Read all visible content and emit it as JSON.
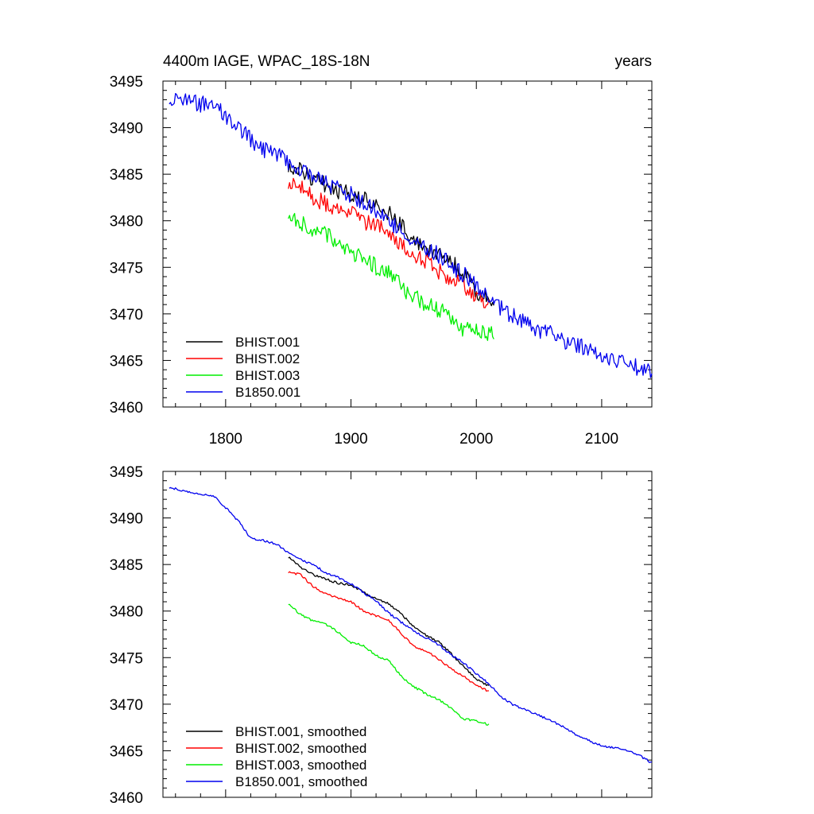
{
  "chart_data": [
    {
      "type": "line",
      "title": "4400m IAGE, WPAC_18S-18N",
      "title_right": "years",
      "xlim": [
        1750,
        2140
      ],
      "ylim": [
        3460,
        3495
      ],
      "xticks": [
        1800,
        1900,
        2000,
        2100
      ],
      "yticks": [
        3460,
        3465,
        3470,
        3475,
        3480,
        3485,
        3490,
        3495
      ],
      "show_xtick_labels": true,
      "legend_position": "bottom-left",
      "series": [
        {
          "name": "BHIST.001",
          "color": "#000000",
          "noise": 0.9,
          "x": [
            1850,
            1860,
            1870,
            1880,
            1890,
            1900,
            1910,
            1920,
            1930,
            1940,
            1950,
            1960,
            1970,
            1980,
            1990,
            2000,
            2005,
            2014
          ],
          "y": [
            3486.0,
            3485.4,
            3484.4,
            3483.9,
            3483.1,
            3482.9,
            3482.3,
            3481.4,
            3480.8,
            3479.6,
            3478.0,
            3477.1,
            3476.6,
            3475.6,
            3474.2,
            3472.3,
            3472.0,
            3471.3
          ]
        },
        {
          "name": "BHIST.002",
          "color": "#ff0000",
          "noise": 0.9,
          "x": [
            1850,
            1860,
            1870,
            1880,
            1890,
            1900,
            1910,
            1920,
            1930,
            1940,
            1950,
            1960,
            1970,
            1980,
            1990,
            2000,
            2010
          ],
          "y": [
            3484.2,
            3483.8,
            3482.5,
            3481.8,
            3481.3,
            3480.9,
            3479.9,
            3479.4,
            3478.8,
            3477.6,
            3476.0,
            3475.8,
            3474.6,
            3473.8,
            3472.9,
            3471.9,
            3471.3
          ]
        },
        {
          "name": "BHIST.003",
          "color": "#00ee00",
          "noise": 0.9,
          "x": [
            1850,
            1860,
            1870,
            1880,
            1890,
            1900,
            1910,
            1920,
            1930,
            1940,
            1950,
            1960,
            1970,
            1980,
            1990,
            2000,
            2010,
            2014
          ],
          "y": [
            3481.0,
            3479.8,
            3479.0,
            3478.6,
            3477.8,
            3476.4,
            3476.4,
            3475.0,
            3474.6,
            3472.9,
            3471.8,
            3471.0,
            3470.4,
            3469.8,
            3468.3,
            3468.2,
            3468.0,
            3467.5
          ]
        },
        {
          "name": "B1850.001",
          "color": "#0000ee",
          "noise": 0.9,
          "x": [
            1755,
            1770,
            1790,
            1800,
            1810,
            1820,
            1830,
            1840,
            1850,
            1860,
            1870,
            1880,
            1890,
            1900,
            1910,
            1920,
            1930,
            1940,
            1950,
            1960,
            1970,
            1980,
            1990,
            2000,
            2010,
            2020,
            2030,
            2040,
            2050,
            2060,
            2070,
            2080,
            2090,
            2100,
            2110,
            2120,
            2130,
            2140
          ],
          "y": [
            3493.3,
            3492.7,
            3492.4,
            3491.2,
            3490.0,
            3488.7,
            3487.6,
            3487.2,
            3486.2,
            3485.4,
            3484.9,
            3484.0,
            3483.5,
            3482.8,
            3481.9,
            3481.0,
            3479.8,
            3479.0,
            3477.9,
            3477.2,
            3476.3,
            3475.2,
            3474.2,
            3473.0,
            3471.9,
            3470.6,
            3469.7,
            3469.1,
            3468.3,
            3467.8,
            3467.1,
            3466.7,
            3466.0,
            3465.6,
            3465.2,
            3464.9,
            3464.1,
            3463.6
          ]
        }
      ]
    },
    {
      "type": "line",
      "title": "",
      "xlim": [
        1750,
        2140
      ],
      "ylim": [
        3460,
        3495
      ],
      "xticks": [
        1800,
        1900,
        2000,
        2100
      ],
      "yticks": [
        3460,
        3465,
        3470,
        3475,
        3480,
        3485,
        3490,
        3495
      ],
      "show_xtick_labels": false,
      "legend_position": "bottom-left",
      "series": [
        {
          "name": "BHIST.001, smoothed",
          "color": "#000000",
          "noise": 0.12,
          "x": [
            1850,
            1860,
            1870,
            1880,
            1890,
            1900,
            1910,
            1920,
            1930,
            1940,
            1950,
            1960,
            1970,
            1980,
            1990,
            2000,
            2005,
            2010
          ],
          "y": [
            3485.8,
            3484.7,
            3483.9,
            3483.4,
            3483.0,
            3482.8,
            3482.0,
            3481.3,
            3480.8,
            3479.7,
            3478.3,
            3477.4,
            3476.7,
            3475.4,
            3474.0,
            3472.7,
            3472.3,
            3472.0
          ]
        },
        {
          "name": "BHIST.002, smoothed",
          "color": "#ff0000",
          "noise": 0.12,
          "x": [
            1850,
            1860,
            1870,
            1880,
            1890,
            1900,
            1910,
            1920,
            1930,
            1940,
            1950,
            1960,
            1970,
            1980,
            1990,
            2000,
            2010
          ],
          "y": [
            3484.2,
            3483.9,
            3482.6,
            3481.8,
            3481.4,
            3481.0,
            3480.0,
            3479.5,
            3479.0,
            3477.6,
            3476.2,
            3475.7,
            3474.8,
            3473.8,
            3473.0,
            3472.0,
            3471.4
          ]
        },
        {
          "name": "BHIST.003, smoothed",
          "color": "#00ee00",
          "noise": 0.12,
          "x": [
            1850,
            1860,
            1870,
            1880,
            1890,
            1900,
            1910,
            1920,
            1930,
            1940,
            1950,
            1960,
            1970,
            1980,
            1990,
            2000,
            2010
          ],
          "y": [
            3480.8,
            3479.6,
            3478.9,
            3478.6,
            3477.7,
            3476.6,
            3476.3,
            3475.2,
            3474.7,
            3473.0,
            3471.9,
            3471.1,
            3470.5,
            3469.6,
            3468.4,
            3468.2,
            3467.8
          ]
        },
        {
          "name": "B1850.001, smoothed",
          "color": "#0000ee",
          "noise": 0.12,
          "x": [
            1755,
            1770,
            1790,
            1800,
            1810,
            1820,
            1830,
            1840,
            1850,
            1860,
            1870,
            1880,
            1890,
            1900,
            1910,
            1920,
            1930,
            1940,
            1950,
            1960,
            1970,
            1980,
            1990,
            2000,
            2010,
            2020,
            2030,
            2040,
            2050,
            2060,
            2070,
            2080,
            2090,
            2100,
            2110,
            2120,
            2130,
            2140
          ],
          "y": [
            3493.3,
            3492.8,
            3492.4,
            3491.1,
            3489.7,
            3487.8,
            3487.6,
            3487.2,
            3486.3,
            3485.5,
            3485.0,
            3484.1,
            3483.6,
            3482.9,
            3482.0,
            3481.1,
            3479.8,
            3478.8,
            3477.9,
            3477.1,
            3476.4,
            3475.3,
            3474.4,
            3473.3,
            3472.2,
            3470.8,
            3469.9,
            3469.4,
            3468.8,
            3468.2,
            3467.5,
            3466.7,
            3466.1,
            3465.5,
            3465.3,
            3465.1,
            3464.5,
            3463.7
          ]
        }
      ]
    }
  ]
}
